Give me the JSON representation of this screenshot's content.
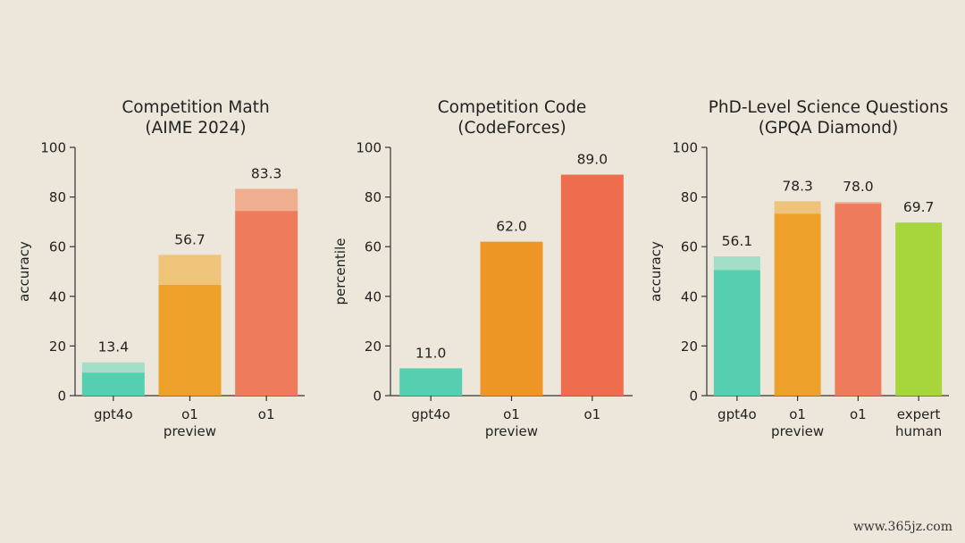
{
  "chart_data": [
    {
      "type": "bar",
      "title": "Competition Math\n(AIME 2024)",
      "ylabel": "accuracy",
      "ylim": [
        0,
        100
      ],
      "yticks": [
        0,
        20,
        40,
        60,
        80,
        100
      ],
      "grid": false,
      "categories": [
        "gpt4o",
        "o1\npreview",
        "o1"
      ],
      "values": [
        13.4,
        56.7,
        83.3
      ],
      "base_values": [
        9.3,
        44.6,
        74.4
      ],
      "value_labels": [
        "13.4",
        "56.7",
        "83.3"
      ],
      "colors": [
        "#55cfb0",
        "#eda12b",
        "#ee7c5c"
      ],
      "light_colors": [
        "#a3dec9",
        "#edc47a",
        "#efae90"
      ]
    },
    {
      "type": "bar",
      "title": "Competition Code\n(CodeForces)",
      "ylabel": "percentile",
      "ylim": [
        0,
        100
      ],
      "yticks": [
        0,
        20,
        40,
        60,
        80,
        100
      ],
      "grid": false,
      "categories": [
        "gpt4o",
        "o1\npreview",
        "o1"
      ],
      "values": [
        11.0,
        62.0,
        89.0
      ],
      "base_values": [
        11.0,
        62.0,
        89.0
      ],
      "value_labels": [
        "11.0",
        "62.0",
        "89.0"
      ],
      "colors": [
        "#55cfb0",
        "#ed9625",
        "#ee6d4e"
      ],
      "light_colors": [
        "#55cfb0",
        "#ed9625",
        "#ee6d4e"
      ]
    },
    {
      "type": "bar",
      "title": "PhD-Level Science Questions\n(GPQA Diamond)",
      "ylabel": "accuracy",
      "ylim": [
        0,
        100
      ],
      "yticks": [
        0,
        20,
        40,
        60,
        80,
        100
      ],
      "grid": false,
      "categories": [
        "gpt4o",
        "o1\npreview",
        "o1",
        "expert\nhuman"
      ],
      "values": [
        56.1,
        78.3,
        78.0,
        69.7
      ],
      "base_values": [
        50.6,
        73.3,
        77.3,
        69.7
      ],
      "value_labels": [
        "56.1",
        "78.3",
        "78.0",
        "69.7"
      ],
      "colors": [
        "#55cfb0",
        "#eda12b",
        "#ee7c5c",
        "#a6d63b"
      ],
      "light_colors": [
        "#a3dec9",
        "#edc47a",
        "#efae90",
        "#a6d63b"
      ]
    }
  ],
  "watermark": "www.365jz.com"
}
